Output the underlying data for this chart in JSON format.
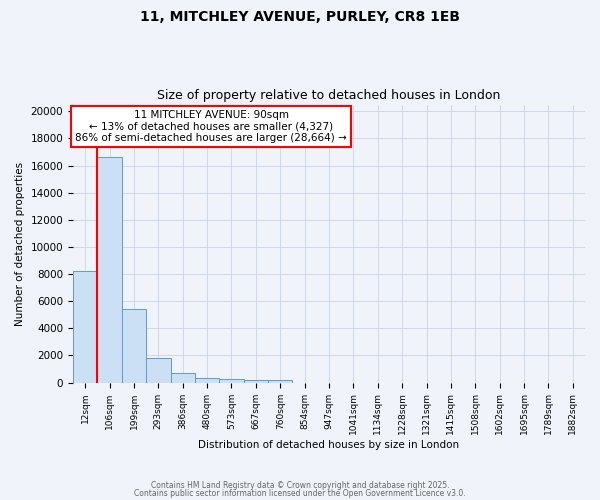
{
  "title1": "11, MITCHLEY AVENUE, PURLEY, CR8 1EB",
  "title2": "Size of property relative to detached houses in London",
  "xlabel": "Distribution of detached houses by size in London",
  "ylabel": "Number of detached properties",
  "bar_labels": [
    "12sqm",
    "106sqm",
    "199sqm",
    "293sqm",
    "386sqm",
    "480sqm",
    "573sqm",
    "667sqm",
    "760sqm",
    "854sqm",
    "947sqm",
    "1041sqm",
    "1134sqm",
    "1228sqm",
    "1321sqm",
    "1415sqm",
    "1508sqm",
    "1602sqm",
    "1695sqm",
    "1789sqm",
    "1882sqm"
  ],
  "bar_values": [
    8200,
    16600,
    5400,
    1850,
    700,
    340,
    250,
    190,
    180,
    0,
    0,
    0,
    0,
    0,
    0,
    0,
    0,
    0,
    0,
    0,
    0
  ],
  "bar_color": "#cce0f5",
  "bar_edge_color": "#5b9bd5",
  "red_line_x": 0.5,
  "ylim": [
    0,
    20500
  ],
  "yticks": [
    0,
    2000,
    4000,
    6000,
    8000,
    10000,
    12000,
    14000,
    16000,
    18000,
    20000
  ],
  "annotation_text": "11 MITCHLEY AVENUE: 90sqm\n← 13% of detached houses are smaller (4,327)\n86% of semi-detached houses are larger (28,664) →",
  "annotation_box_color": "#ff0000",
  "footer1": "Contains HM Land Registry data © Crown copyright and database right 2025.",
  "footer2": "Contains public sector information licensed under the Open Government Licence v3.0.",
  "bg_color": "#f0f4fa",
  "grid_color": "#c8d4e8",
  "title1_fontsize": 10,
  "title2_fontsize": 9,
  "ann_fontsize": 7.5
}
